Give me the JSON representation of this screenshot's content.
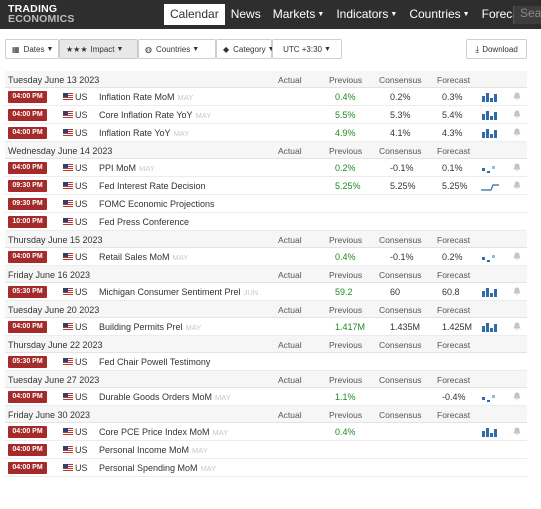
{
  "logo": {
    "line1": "TRADING",
    "line2": "ECONOMICS"
  },
  "nav": [
    {
      "label": "Calendar",
      "caret": false
    },
    {
      "label": "News",
      "caret": false
    },
    {
      "label": "Markets",
      "caret": true
    },
    {
      "label": "Indicators",
      "caret": true
    },
    {
      "label": "Countries",
      "caret": true
    },
    {
      "label": "Forecasts",
      "caret": true
    }
  ],
  "search": {
    "placeholder": "Sea"
  },
  "filters": {
    "dates": "Dates",
    "impact_stars": "★★★",
    "impact": "Impact",
    "countries": "Countries",
    "category": "Category",
    "timezone": "UTC +3:30"
  },
  "download": "Download",
  "columns": {
    "actual": "Actual",
    "previous": "Previous",
    "consensus": "Consensus",
    "forecast": "Forecast"
  },
  "sections": [
    {
      "date": "Tuesday June 13 2023",
      "events": [
        {
          "time": "04:00 PM",
          "country": "US",
          "event": "Inflation Rate MoM",
          "ref": "MAY",
          "actual": "",
          "previous": "0.4%",
          "consensus": "0.2%",
          "forecast": "0.3%",
          "spark": "bars"
        },
        {
          "time": "04:00 PM",
          "country": "US",
          "event": "Core Inflation Rate YoY",
          "ref": "MAY",
          "actual": "",
          "previous": "5.5%",
          "consensus": "5.3%",
          "forecast": "5.4%",
          "spark": "bars"
        },
        {
          "time": "04:00 PM",
          "country": "US",
          "event": "Inflation Rate YoY",
          "ref": "MAY",
          "actual": "",
          "previous": "4.9%",
          "consensus": "4.1%",
          "forecast": "4.3%",
          "spark": "bars"
        }
      ]
    },
    {
      "date": "Wednesday June 14 2023",
      "events": [
        {
          "time": "04:00 PM",
          "country": "US",
          "event": "PPI MoM",
          "ref": "MAY",
          "actual": "",
          "previous": "0.2%",
          "consensus": "-0.1%",
          "forecast": "0.1%",
          "spark": "dots"
        },
        {
          "time": "09:30 PM",
          "country": "US",
          "event": "Fed Interest Rate Decision",
          "ref": "",
          "actual": "",
          "previous": "5.25%",
          "consensus": "5.25%",
          "forecast": "5.25%",
          "spark": "step"
        },
        {
          "time": "09:30 PM",
          "country": "US",
          "event": "FOMC Economic Projections",
          "ref": "",
          "actual": "",
          "previous": "",
          "consensus": "",
          "forecast": "",
          "spark": ""
        },
        {
          "time": "10:00 PM",
          "country": "US",
          "event": "Fed Press Conference",
          "ref": "",
          "actual": "",
          "previous": "",
          "consensus": "",
          "forecast": "",
          "spark": ""
        }
      ]
    },
    {
      "date": "Thursday June 15 2023",
      "events": [
        {
          "time": "04:00 PM",
          "country": "US",
          "event": "Retail Sales MoM",
          "ref": "MAY",
          "actual": "",
          "previous": "0.4%",
          "consensus": "-0.1%",
          "forecast": "0.2%",
          "spark": "dots"
        }
      ]
    },
    {
      "date": "Friday June 16 2023",
      "events": [
        {
          "time": "05:30 PM",
          "country": "US",
          "event": "Michigan Consumer Sentiment Prel",
          "ref": "JUN",
          "actual": "",
          "previous": "59.2",
          "consensus": "60",
          "forecast": "60.8",
          "spark": "bars"
        }
      ]
    },
    {
      "date": "Tuesday June 20 2023",
      "events": [
        {
          "time": "04:00 PM",
          "country": "US",
          "event": "Building Permits Prel",
          "ref": "MAY",
          "actual": "",
          "previous": "1.417M",
          "consensus": "1.435M",
          "forecast": "1.425M",
          "spark": "bars"
        }
      ]
    },
    {
      "date": "Thursday June 22 2023",
      "events": [
        {
          "time": "05:30 PM",
          "country": "US",
          "event": "Fed Chair Powell Testimony",
          "ref": "",
          "actual": "",
          "previous": "",
          "consensus": "",
          "forecast": "",
          "spark": ""
        }
      ]
    },
    {
      "date": "Tuesday June 27 2023",
      "events": [
        {
          "time": "04:00 PM",
          "country": "US",
          "event": "Durable Goods Orders MoM",
          "ref": "MAY",
          "actual": "",
          "previous": "1.1%",
          "consensus": "",
          "forecast": "-0.4%",
          "spark": "dots"
        }
      ]
    },
    {
      "date": "Friday June 30 2023",
      "events": [
        {
          "time": "04:00 PM",
          "country": "US",
          "event": "Core PCE Price Index MoM",
          "ref": "MAY",
          "actual": "",
          "previous": "0.4%",
          "consensus": "",
          "forecast": "",
          "spark": "bars"
        },
        {
          "time": "04:00 PM",
          "country": "US",
          "event": "Personal Income MoM",
          "ref": "MAY",
          "actual": "",
          "previous": "",
          "consensus": "",
          "forecast": "",
          "spark": ""
        },
        {
          "time": "04:00 PM",
          "country": "US",
          "event": "Personal Spending MoM",
          "ref": "MAY",
          "actual": "",
          "previous": "",
          "consensus": "",
          "forecast": "",
          "spark": ""
        }
      ]
    }
  ],
  "colors": {
    "time_badge": "#a52a2a",
    "previous_text": "#1f8a1f",
    "sparkline": "#2f6ba8",
    "topbar": "#2e2e2e"
  }
}
